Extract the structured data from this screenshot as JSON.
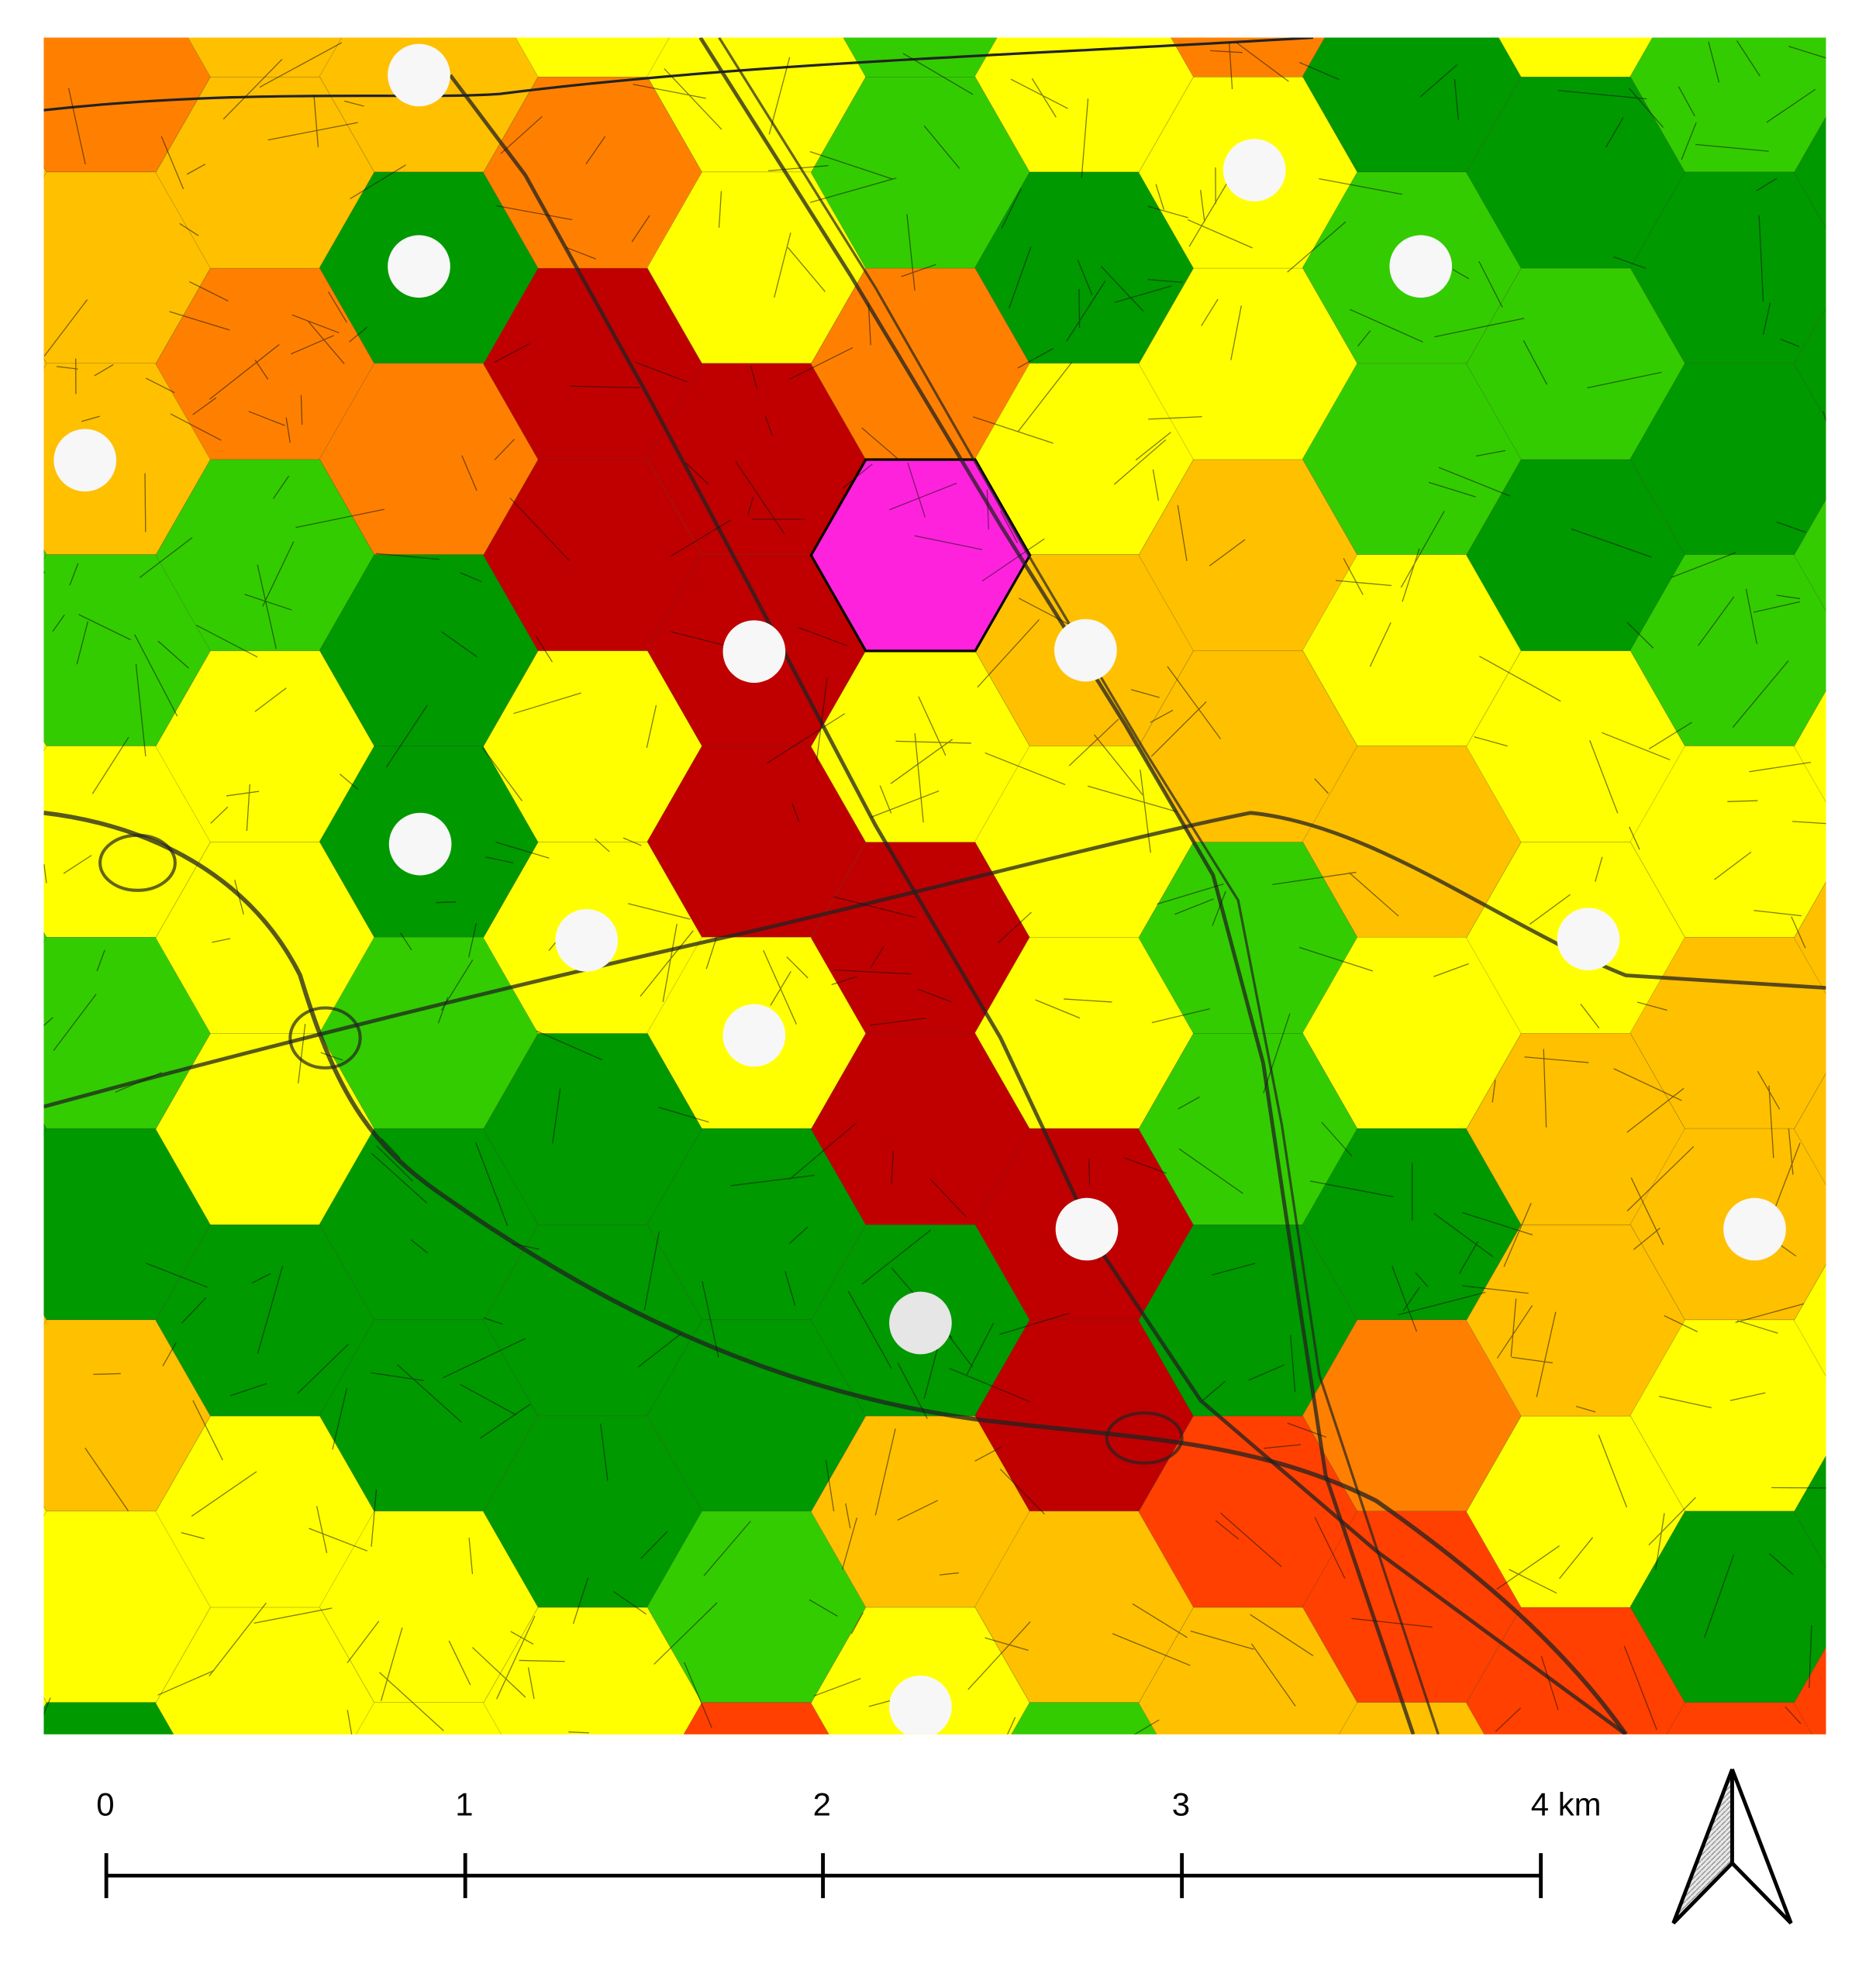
{
  "scale_bar": {
    "labels": [
      "0",
      "1",
      "2",
      "3",
      "4 km"
    ]
  }
}
